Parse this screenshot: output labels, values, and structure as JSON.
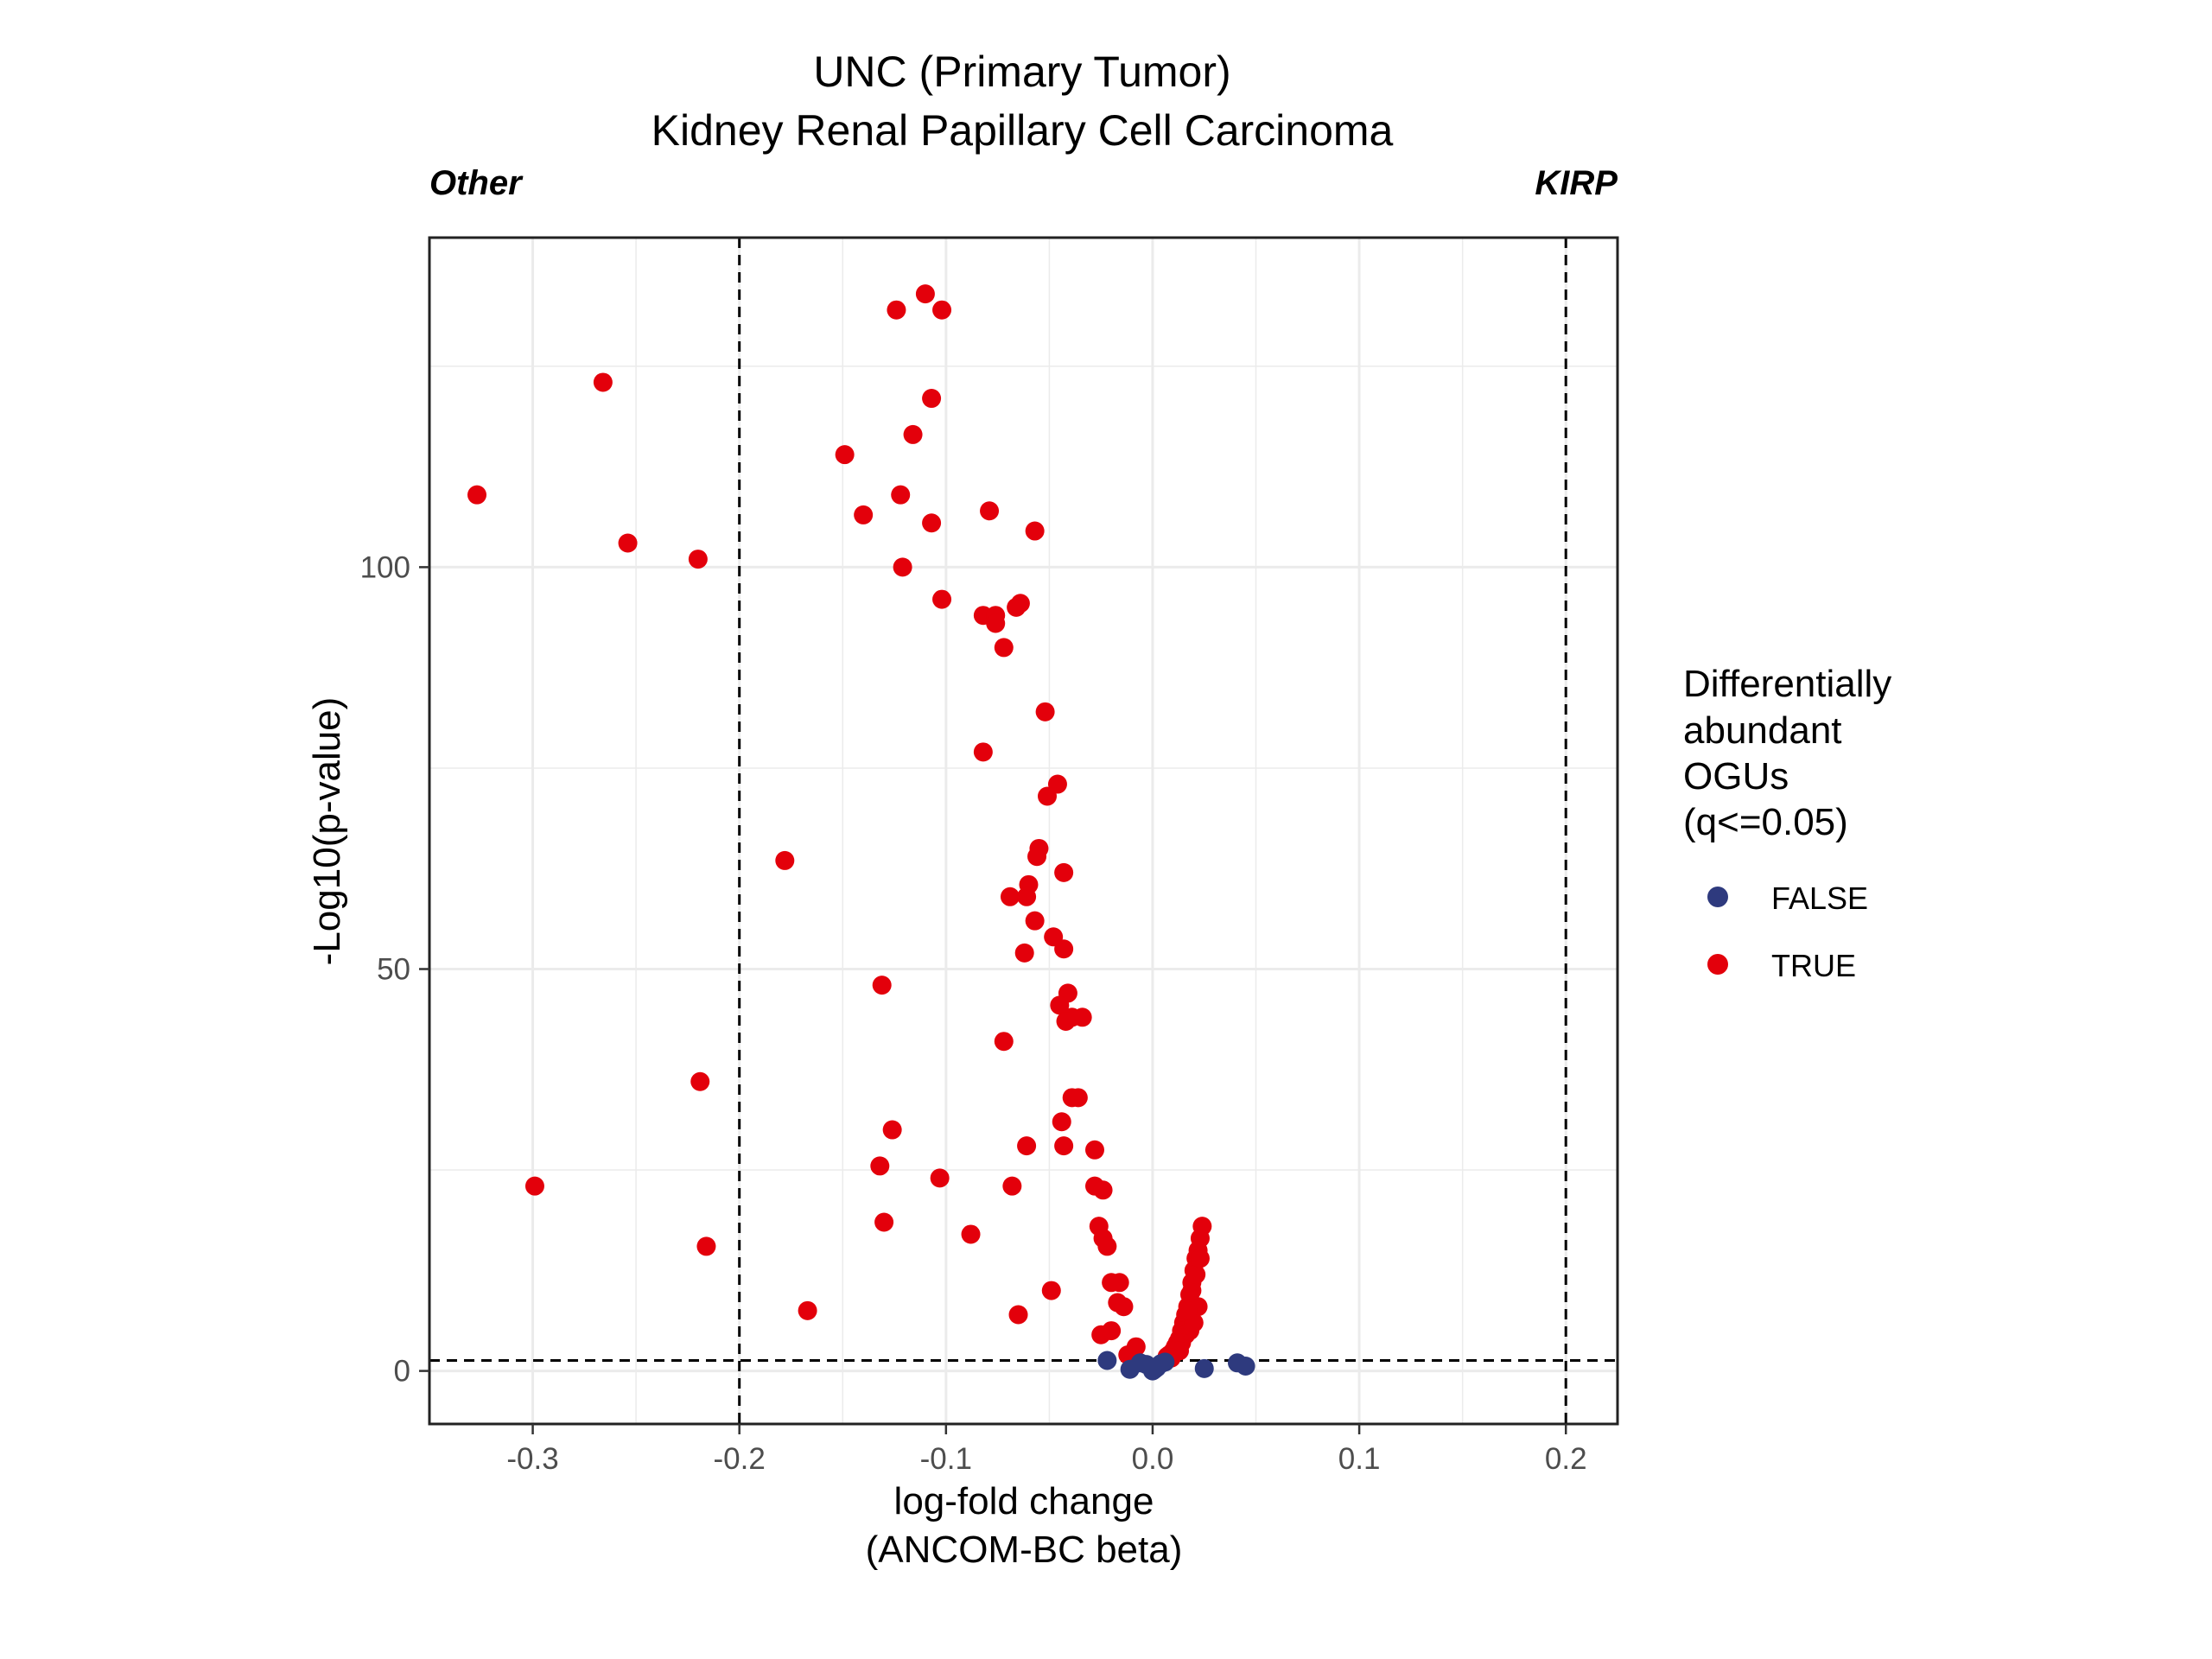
{
  "chart_data": {
    "type": "scatter",
    "title": "UNC (Primary Tumor)",
    "subtitle": "Kidney Renal Papillary Cell Carcinoma",
    "left_corner_label": "Other",
    "right_corner_label": "KIRP",
    "xlabel": "log-fold change",
    "xlabel_sub": "(ANCOM-BC beta)",
    "ylabel": "-Log10(p-value)",
    "xlim": [
      -0.35,
      0.225
    ],
    "ylim": [
      -6.6,
      141
    ],
    "x_ticks": [
      -0.3,
      -0.2,
      -0.1,
      0.0,
      0.1,
      0.2
    ],
    "x_tick_labels": [
      "-0.3",
      "-0.2",
      "-0.1",
      "0.0",
      "0.1",
      "0.2"
    ],
    "y_ticks": [
      0,
      50,
      100
    ],
    "y_tick_labels": [
      "0",
      "50",
      "100"
    ],
    "x_minor_grid": [
      -0.35,
      -0.25,
      -0.15,
      -0.05,
      0.05,
      0.15
    ],
    "y_minor_grid": [
      25,
      75,
      125
    ],
    "grid": true,
    "reference_lines": {
      "vertical": [
        -0.2,
        0.2
      ],
      "horizontal": [
        1.3
      ]
    },
    "legend": {
      "title_lines": [
        "Differentially",
        "abundant",
        "OGUs",
        "(q<=0.05)"
      ],
      "placement": "right",
      "entries": [
        {
          "label": "FALSE",
          "color": "#2E3A7E"
        },
        {
          "label": "TRUE",
          "color": "#E3000B"
        }
      ]
    },
    "colors": {
      "FALSE": "#2E3A7E",
      "TRUE": "#E3000B",
      "axis": "#222222",
      "grid": "#EBEBEB"
    },
    "series": [
      {
        "name": "TRUE",
        "points": [
          [
            -0.11,
            134
          ],
          [
            -0.124,
            132
          ],
          [
            -0.102,
            132
          ],
          [
            -0.266,
            123
          ],
          [
            -0.107,
            121
          ],
          [
            -0.116,
            116.5
          ],
          [
            -0.149,
            114
          ],
          [
            -0.327,
            109
          ],
          [
            -0.122,
            109
          ],
          [
            -0.14,
            106.5
          ],
          [
            -0.107,
            105.5
          ],
          [
            -0.079,
            107
          ],
          [
            -0.057,
            104.5
          ],
          [
            -0.254,
            103
          ],
          [
            -0.22,
            101
          ],
          [
            -0.121,
            100
          ],
          [
            -0.102,
            96
          ],
          [
            -0.064,
            95.5
          ],
          [
            -0.082,
            94
          ],
          [
            -0.076,
            94
          ],
          [
            -0.076,
            93
          ],
          [
            -0.066,
            95
          ],
          [
            -0.072,
            90
          ],
          [
            -0.052,
            82
          ],
          [
            -0.082,
            77
          ],
          [
            -0.046,
            73
          ],
          [
            -0.051,
            71.5
          ],
          [
            -0.055,
            65
          ],
          [
            -0.056,
            64
          ],
          [
            -0.178,
            63.5
          ],
          [
            -0.043,
            62
          ],
          [
            -0.06,
            60.5
          ],
          [
            -0.069,
            59
          ],
          [
            -0.061,
            59
          ],
          [
            -0.057,
            56
          ],
          [
            -0.048,
            54
          ],
          [
            -0.043,
            52.5
          ],
          [
            -0.062,
            52
          ],
          [
            -0.131,
            48
          ],
          [
            -0.041,
            47
          ],
          [
            -0.045,
            45.5
          ],
          [
            -0.039,
            44
          ],
          [
            -0.034,
            44
          ],
          [
            -0.042,
            43.5
          ],
          [
            -0.072,
            41
          ],
          [
            -0.219,
            36
          ],
          [
            -0.039,
            34
          ],
          [
            -0.036,
            34
          ],
          [
            -0.044,
            31
          ],
          [
            -0.126,
            30
          ],
          [
            -0.061,
            28
          ],
          [
            -0.043,
            28
          ],
          [
            -0.028,
            27.5
          ],
          [
            -0.132,
            25.5
          ],
          [
            -0.103,
            24
          ],
          [
            -0.299,
            23
          ],
          [
            -0.068,
            23
          ],
          [
            -0.028,
            23
          ],
          [
            -0.024,
            22.5
          ],
          [
            -0.13,
            18.5
          ],
          [
            -0.026,
            18
          ],
          [
            -0.088,
            17
          ],
          [
            -0.024,
            16.5
          ],
          [
            -0.216,
            15.5
          ],
          [
            -0.022,
            15.5
          ],
          [
            -0.02,
            11
          ],
          [
            -0.016,
            11
          ],
          [
            -0.049,
            10
          ],
          [
            -0.017,
            8.5
          ],
          [
            -0.014,
            8
          ],
          [
            -0.167,
            7.5
          ],
          [
            -0.065,
            7
          ],
          [
            -0.02,
            5
          ],
          [
            -0.025,
            4.5
          ],
          [
            -0.008,
            3
          ],
          [
            -0.012,
            2
          ],
          [
            0.024,
            18
          ],
          [
            0.023,
            16.5
          ],
          [
            0.022,
            15
          ],
          [
            0.021,
            14
          ],
          [
            0.02,
            12.5
          ],
          [
            0.019,
            11
          ],
          [
            0.018,
            9.5
          ],
          [
            0.017,
            8
          ],
          [
            0.016,
            7
          ],
          [
            0.015,
            6
          ],
          [
            0.014,
            5
          ],
          [
            0.013,
            4
          ],
          [
            0.012,
            3.5
          ],
          [
            0.011,
            3
          ],
          [
            0.01,
            2.5
          ],
          [
            0.008,
            2
          ],
          [
            0.007,
            1.8
          ],
          [
            0.018,
            5
          ],
          [
            0.016,
            4.5
          ],
          [
            0.014,
            3.5
          ],
          [
            0.02,
            6
          ],
          [
            0.022,
            8
          ],
          [
            0.017,
            7.5
          ],
          [
            0.019,
            10
          ],
          [
            0.021,
            12
          ],
          [
            0.023,
            14
          ],
          [
            0.013,
            2.5
          ],
          [
            0.009,
            1.6
          ]
        ]
      },
      {
        "name": "FALSE",
        "points": [
          [
            -0.022,
            1.3
          ],
          [
            -0.011,
            0.2
          ],
          [
            -0.006,
            1.0
          ],
          [
            -0.003,
            0.8
          ],
          [
            0.0,
            0.0
          ],
          [
            0.002,
            0.4
          ],
          [
            0.004,
            0.9
          ],
          [
            0.006,
            1.1
          ],
          [
            0.025,
            0.3
          ],
          [
            0.041,
            1.0
          ],
          [
            0.045,
            0.6
          ],
          [
            0.001,
            0.2
          ],
          [
            -0.001,
            0.5
          ]
        ]
      }
    ]
  }
}
